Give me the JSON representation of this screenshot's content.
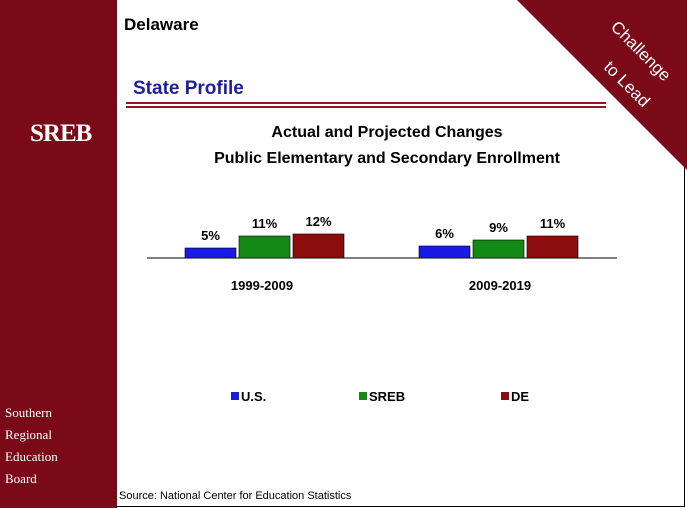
{
  "header": {
    "state": "Delaware",
    "section_title": "State Profile",
    "corner_line1": "Challenge",
    "corner_line2": "to Lead"
  },
  "sidebar": {
    "logo_text": "SREB",
    "org_lines": [
      "Southern",
      "Regional",
      "Education",
      "Board"
    ]
  },
  "source": "Source: National Center for Education Statistics",
  "colors": {
    "sidebar": "#7a0a18",
    "us": "#1a1ae6",
    "sreb": "#138a13",
    "de": "#8b0d0d"
  },
  "chart_data": {
    "type": "bar",
    "title_lines": [
      "Actual and Projected Changes",
      "Public Elementary and Secondary Enrollment"
    ],
    "categories": [
      "1999-2009",
      "2009-2019"
    ],
    "series": [
      {
        "name": "U.S.",
        "values": [
          5,
          6
        ],
        "labels": [
          "5%",
          "6%"
        ]
      },
      {
        "name": "SREB",
        "values": [
          11,
          9
        ],
        "labels": [
          "11%",
          "9%"
        ]
      },
      {
        "name": "DE",
        "values": [
          12,
          11
        ],
        "labels": [
          "12%",
          "11%"
        ]
      }
    ],
    "unit": "%",
    "ylim": [
      0,
      12
    ],
    "legend_position": "bottom"
  }
}
